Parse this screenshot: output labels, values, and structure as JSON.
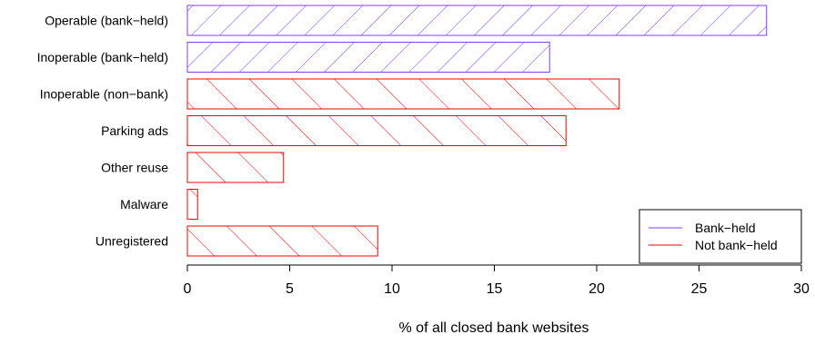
{
  "chart_data": {
    "type": "bar",
    "orientation": "horizontal",
    "categories": [
      "Operable (bank−held)",
      "Inoperable (bank−held)",
      "Inoperable (non−bank)",
      "Parking ads",
      "Other reuse",
      "Malware",
      "Unregistered"
    ],
    "values": [
      28.3,
      17.7,
      21.1,
      18.5,
      4.7,
      0.5,
      9.3
    ],
    "group": [
      "Bank−held",
      "Bank−held",
      "Not bank−held",
      "Not bank−held",
      "Not bank−held",
      "Not bank−held",
      "Not bank−held"
    ],
    "xlabel": "% of all closed bank websites",
    "ylabel": "",
    "xlim": [
      0,
      30
    ],
    "xticks": [
      0,
      5,
      10,
      15,
      20,
      25,
      30
    ],
    "grid": false,
    "legend": {
      "placement": "bottom-right",
      "entries": [
        {
          "label": "Bank−held",
          "color": "#7f3fff"
        },
        {
          "label": "Not bank−held",
          "color": "#ff0000"
        }
      ]
    },
    "colors": {
      "Bank−held": "#7f3fff",
      "Not bank−held": "#ff0000"
    },
    "hatch": {
      "Bank−held": "forward-diagonal",
      "Not bank−held": "backward-diagonal"
    }
  }
}
